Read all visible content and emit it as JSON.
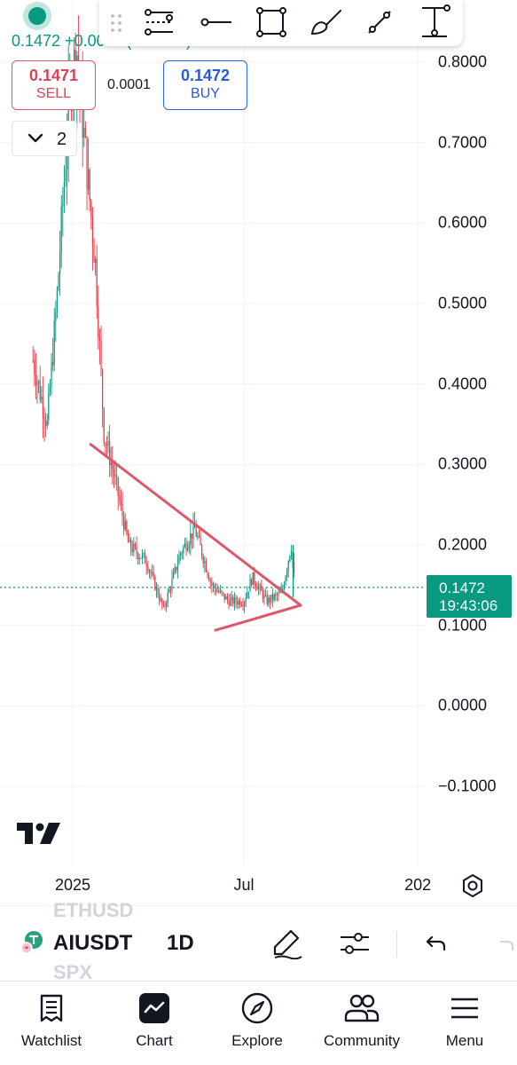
{
  "legend": {
    "price_line": "0.1472 +0.0011 (+0.75%)"
  },
  "toolbar": {
    "tools": [
      {
        "icon": "grip-icon"
      },
      {
        "icon": "pitchfork-icon"
      },
      {
        "icon": "horizontal-ray-icon"
      },
      {
        "icon": "rectangle-icon"
      },
      {
        "icon": "brush-icon"
      },
      {
        "icon": "trend-line-icon"
      },
      {
        "icon": "price-range-icon"
      }
    ]
  },
  "trade": {
    "sell_price": "0.1471",
    "sell_label": "SELL",
    "spread": "0.0001",
    "buy_price": "0.1472",
    "buy_label": "BUY"
  },
  "indicators_collapse": {
    "count": "2"
  },
  "chart_data": {
    "type": "candlestick",
    "symbol": "AIUSDT",
    "interval": "1D",
    "ylim": [
      -0.1,
      0.8
    ],
    "y_ticks": [
      "0.8000",
      "0.7000",
      "0.6000",
      "0.5000",
      "0.4000",
      "0.3000",
      "0.2000",
      "0.1000",
      "0.0000",
      "−0.1000"
    ],
    "x_ticks": [
      "2025",
      "Jul",
      "202"
    ],
    "last_price": "0.1472",
    "countdown": "19:43:06",
    "series": [
      {
        "name": "price",
        "approx_path": [
          {
            "t": "2024-11-20",
            "v": 0.43
          },
          {
            "t": "2024-12-05",
            "v": 0.35
          },
          {
            "t": "2024-12-15",
            "v": 0.5
          },
          {
            "t": "2024-12-28",
            "v": 0.75
          },
          {
            "t": "2025-01-05",
            "v": 0.82
          },
          {
            "t": "2025-01-15",
            "v": 0.68
          },
          {
            "t": "2025-01-25",
            "v": 0.55
          },
          {
            "t": "2025-02-03",
            "v": 0.34
          },
          {
            "t": "2025-02-15",
            "v": 0.28
          },
          {
            "t": "2025-03-01",
            "v": 0.2
          },
          {
            "t": "2025-03-20",
            "v": 0.18
          },
          {
            "t": "2025-04-07",
            "v": 0.12
          },
          {
            "t": "2025-04-25",
            "v": 0.19
          },
          {
            "t": "2025-05-10",
            "v": 0.22
          },
          {
            "t": "2025-05-28",
            "v": 0.15
          },
          {
            "t": "2025-06-15",
            "v": 0.13
          },
          {
            "t": "2025-07-01",
            "v": 0.13
          },
          {
            "t": "2025-07-10",
            "v": 0.16
          },
          {
            "t": "2025-07-25",
            "v": 0.13
          },
          {
            "t": "2025-08-10",
            "v": 0.14
          },
          {
            "t": "2025-08-20",
            "v": 0.2
          },
          {
            "t": "2025-08-24",
            "v": 0.147
          }
        ]
      }
    ],
    "drawings": [
      {
        "type": "trend_line",
        "color": "#e0566a",
        "from": {
          "t": "2025-01-20",
          "v": 0.325
        },
        "to": {
          "t": "2025-08-30",
          "v": 0.125
        }
      },
      {
        "type": "trend_line",
        "color": "#e0566a",
        "from": {
          "t": "2025-06-01",
          "v": 0.094
        },
        "to": {
          "t": "2025-08-30",
          "v": 0.125
        }
      }
    ],
    "colors": {
      "up": "#089981",
      "down": "#f23645",
      "last_price_line": "#089981"
    }
  },
  "symbol_bar": {
    "ghost_above": "ETHUSD",
    "symbol": "AIUSDT",
    "ghost_below": "SPX",
    "interval": "1D"
  },
  "nav": {
    "items": [
      {
        "label": "Watchlist",
        "icon": "watchlist-icon"
      },
      {
        "label": "Chart",
        "icon": "chart-icon"
      },
      {
        "label": "Explore",
        "icon": "compass-icon"
      },
      {
        "label": "Community",
        "icon": "people-icon"
      },
      {
        "label": "Menu",
        "icon": "hamburger-icon"
      }
    ]
  }
}
